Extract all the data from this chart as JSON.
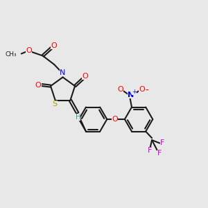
{
  "bg_color": "#e8e8e8",
  "bond_color": "#1a1a1a",
  "bond_width": 1.5,
  "figsize": [
    3.0,
    3.0
  ],
  "dpi": 100,
  "xlim": [
    0,
    10
  ],
  "ylim": [
    0,
    10
  ]
}
